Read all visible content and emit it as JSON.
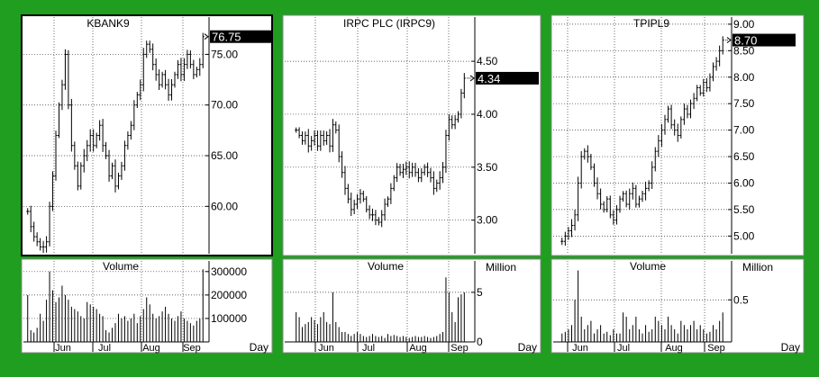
{
  "theme": {
    "frame": "#1f9e1f",
    "panel_bg": "#ffffff",
    "bar": "#000000",
    "grid": "#333333",
    "highlight": "#000000",
    "highlight_text": "#ffffff"
  },
  "x_axis_label": "Day",
  "panels": [
    {
      "symbol": "KBANK9",
      "title": "KBANK9",
      "last_value": "76.75",
      "volume_label": "Volume",
      "volume_unit": "",
      "chart_data": {
        "type": "bar",
        "subtype": "ohlc",
        "title": "KBANK9",
        "months": [
          "Jun",
          "Jul",
          "Aug",
          "Sep"
        ],
        "price_ticks": [
          "60.00",
          "65.00",
          "70.00",
          "75.00"
        ],
        "ylim": [
          55.5,
          78.5
        ],
        "last_price": 76.75,
        "price_closes": [
          59.5,
          58,
          57,
          56.5,
          56,
          56,
          56.5,
          60,
          63,
          67,
          70,
          72,
          75,
          70,
          66,
          64,
          62,
          64,
          65,
          66,
          67,
          66,
          67,
          68,
          66,
          65,
          63,
          64,
          62,
          63,
          64,
          66,
          67,
          68,
          70,
          71,
          72,
          75,
          76,
          75.5,
          74,
          73,
          72,
          73,
          72,
          71,
          72,
          73,
          74,
          73,
          74,
          75,
          74,
          73,
          73.5,
          74,
          76.75
        ],
        "volume_ticks": [
          "100000",
          "200000",
          "300000"
        ],
        "volume_ylim": [
          0,
          330000
        ],
        "volumes": [
          200000,
          50000,
          40000,
          60000,
          120000,
          90000,
          180000,
          300000,
          220000,
          170000,
          190000,
          240000,
          200000,
          180000,
          150000,
          140000,
          130000,
          110000,
          100000,
          170000,
          160000,
          150000,
          140000,
          120000,
          110000,
          50000,
          40000,
          60000,
          80000,
          120000,
          100000,
          110000,
          90000,
          100000,
          120000,
          80000,
          110000,
          140000,
          190000,
          160000,
          120000,
          100000,
          110000,
          130000,
          150000,
          120000,
          100000,
          90000,
          110000,
          130000,
          100000,
          90000,
          80000,
          70000,
          90000,
          100000,
          310000
        ]
      }
    },
    {
      "symbol": "IRPC9",
      "title": "IRPC  PLC  (IRPC9)",
      "last_value": "4.34",
      "volume_label": "Volume",
      "volume_unit": "Million",
      "chart_data": {
        "type": "bar",
        "subtype": "ohlc",
        "title": "IRPC  PLC  (IRPC9)",
        "months": [
          "Jun",
          "Jul",
          "Aug",
          "Sep"
        ],
        "price_ticks": [
          "3.00",
          "3.50",
          "4.00",
          "4.50"
        ],
        "ylim": [
          2.7,
          4.9
        ],
        "last_price": 4.34,
        "price_closes": [
          3.85,
          3.8,
          3.75,
          3.8,
          3.7,
          3.75,
          3.8,
          3.7,
          3.8,
          3.75,
          3.8,
          3.7,
          3.9,
          3.85,
          3.6,
          3.45,
          3.3,
          3.2,
          3.1,
          3.15,
          3.2,
          3.25,
          3.2,
          3.1,
          3.05,
          3.05,
          3.0,
          2.98,
          3.05,
          3.15,
          3.2,
          3.3,
          3.4,
          3.5,
          3.45,
          3.48,
          3.5,
          3.45,
          3.5,
          3.45,
          3.4,
          3.45,
          3.5,
          3.45,
          3.4,
          3.3,
          3.35,
          3.4,
          3.5,
          3.8,
          3.95,
          3.9,
          3.95,
          4.0,
          4.2,
          4.34
        ],
        "volume_ticks": [
          "0",
          "5"
        ],
        "volume_ylim": [
          0,
          7.8
        ],
        "volumes": [
          3,
          2.5,
          1.5,
          1.8,
          2,
          2.5,
          2.2,
          1.8,
          2.5,
          3,
          2,
          1.8,
          5,
          2,
          1.5,
          1,
          1,
          0.8,
          0.6,
          0.8,
          1,
          0.8,
          0.6,
          0.5,
          0.6,
          0.8,
          0.6,
          0.5,
          0.6,
          0.4,
          0.8,
          0.6,
          0.7,
          0.6,
          0.5,
          0.6,
          0.5,
          0.4,
          0.5,
          0.6,
          0.5,
          0.5,
          0.6,
          0.5,
          0.4,
          0.5,
          0.6,
          0.8,
          1,
          6.5,
          5,
          3,
          2,
          4.5,
          4.8,
          5
        ]
      }
    },
    {
      "symbol": "TPIPL9",
      "title": "TPIPL9",
      "last_value": "8.70",
      "volume_label": "Volume",
      "volume_unit": "Million",
      "chart_data": {
        "type": "bar",
        "subtype": "ohlc",
        "title": "TPIPL9",
        "months": [
          "Jun",
          "Jul",
          "Aug",
          "Sep"
        ],
        "price_ticks": [
          "5.00",
          "5.50",
          "6.00",
          "6.50",
          "7.00",
          "7.50",
          "8.00",
          "8.50",
          "9.00"
        ],
        "ylim": [
          4.7,
          9.1
        ],
        "last_price": 8.7,
        "price_closes": [
          4.9,
          5.0,
          5.1,
          5.2,
          5.4,
          6.0,
          6.5,
          6.6,
          6.5,
          6.3,
          6.0,
          5.8,
          5.6,
          5.5,
          5.7,
          5.4,
          5.3,
          5.5,
          5.7,
          5.8,
          5.6,
          5.8,
          5.9,
          5.6,
          5.7,
          5.8,
          5.9,
          6.0,
          6.3,
          6.6,
          6.8,
          7.0,
          7.2,
          7.4,
          7.1,
          7.0,
          6.9,
          7.2,
          7.4,
          7.3,
          7.5,
          7.6,
          7.8,
          7.7,
          7.9,
          7.8,
          8.0,
          8.2,
          8.3,
          8.5,
          8.7
        ],
        "volume_ticks": [
          "0.5"
        ],
        "volume_ylim": [
          0,
          0.92
        ],
        "volumes": [
          0.1,
          0.12,
          0.15,
          0.2,
          0.5,
          0.85,
          0.3,
          0.15,
          0.2,
          0.25,
          0.1,
          0.15,
          0.2,
          0.1,
          0.12,
          0.08,
          0.15,
          0.1,
          0.1,
          0.35,
          0.3,
          0.15,
          0.2,
          0.3,
          0.15,
          0.1,
          0.2,
          0.12,
          0.15,
          0.3,
          0.25,
          0.2,
          0.15,
          0.3,
          0.2,
          0.15,
          0.1,
          0.25,
          0.2,
          0.15,
          0.2,
          0.25,
          0.15,
          0.2,
          0.15,
          0.1,
          0.12,
          0.2,
          0.15,
          0.25,
          0.35
        ]
      }
    }
  ]
}
